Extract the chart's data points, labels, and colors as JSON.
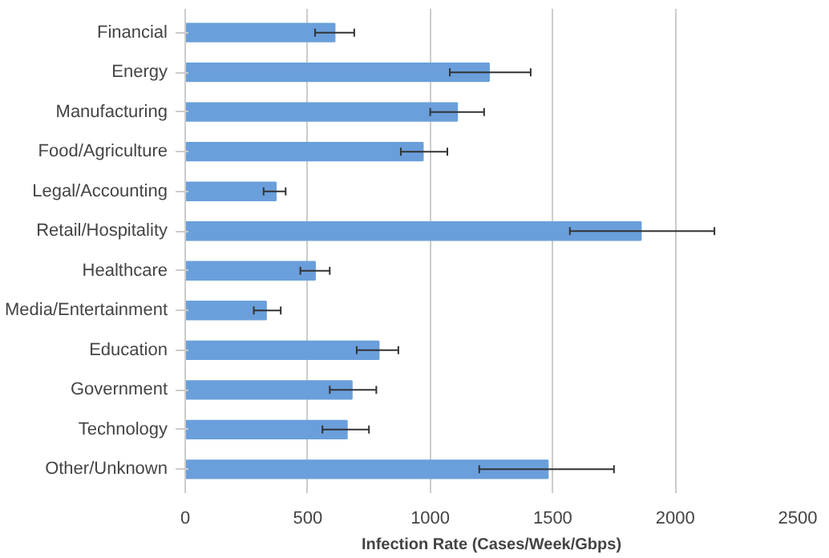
{
  "chart_data": {
    "type": "bar",
    "orientation": "horizontal",
    "categories": [
      "Financial",
      "Energy",
      "Manufacturing",
      "Food/Agriculture",
      "Legal/Accounting",
      "Retail/Hospitality",
      "Healthcare",
      "Media/Entertainment",
      "Education",
      "Government",
      "Technology",
      "Other/Unknown"
    ],
    "values": [
      610,
      1240,
      1110,
      970,
      370,
      1860,
      530,
      330,
      790,
      680,
      660,
      1480
    ],
    "errors": [
      [
        530,
        690
      ],
      [
        1080,
        1410
      ],
      [
        1000,
        1220
      ],
      [
        880,
        1070
      ],
      [
        320,
        410
      ],
      [
        1570,
        2160
      ],
      [
        470,
        590
      ],
      [
        280,
        390
      ],
      [
        700,
        870
      ],
      [
        590,
        780
      ],
      [
        560,
        750
      ],
      [
        1200,
        1750
      ]
    ],
    "color": "#6a9fdb",
    "xlabel": "Infection Rate (Cases/Week/Gbps)",
    "xlim": [
      0,
      2500
    ],
    "xticks": [
      0,
      500,
      1000,
      1500,
      2000,
      2500
    ],
    "grid": "x"
  }
}
